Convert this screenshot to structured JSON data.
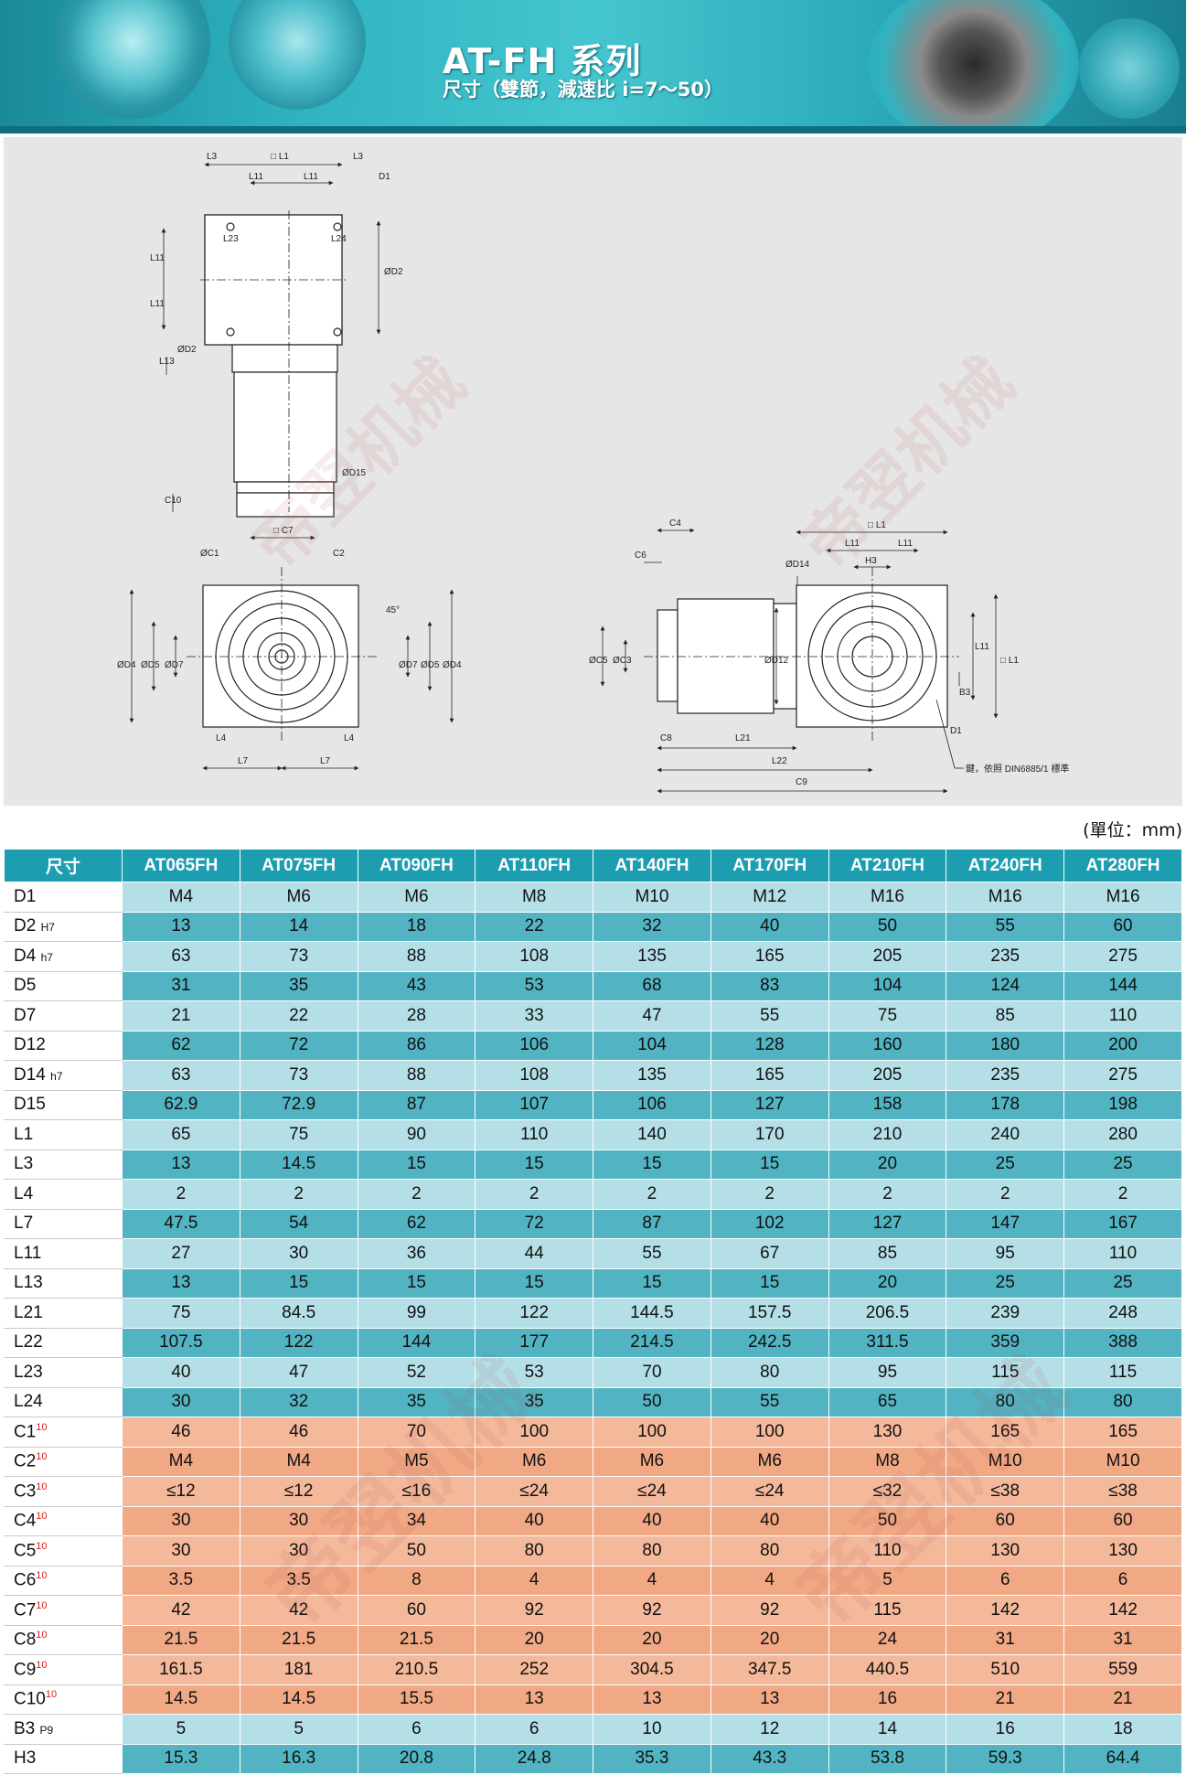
{
  "banner": {
    "title": "AT-FH 系列",
    "subtitle": "尺寸（雙節，減速比 i=7～50）"
  },
  "watermark": "帝翌机械",
  "drawing": {
    "labels": {
      "L3": "L3",
      "L1": "□ L1",
      "L11": "L11",
      "D1": "D1",
      "L23": "L23",
      "L24": "L24",
      "D2": "ØD2",
      "L13": "L13",
      "D15": "ØD15",
      "C10": "C10",
      "C7": "□ C7",
      "C1": "ØC1",
      "C2": "C2",
      "angle": "45°",
      "D4": "ØD4",
      "D5": "ØD5",
      "D7": "ØD7",
      "L4": "L4",
      "L7": "L7",
      "C4": "C4",
      "C6": "C6",
      "D14": "ØD14",
      "H3": "H3",
      "C5": "ØC5",
      "C3": "ØC3",
      "D12": "ØD12",
      "B3": "B3",
      "C8": "C8",
      "L21": "L21",
      "L22": "L22",
      "C9": "C9",
      "key_note": "鍵，依照 DIN6885/1 標準"
    }
  },
  "unit": "(單位：mm)",
  "table": {
    "header_label": "尺寸",
    "models": [
      "AT065FH",
      "AT075FH",
      "AT090FH",
      "AT110FH",
      "AT140FH",
      "AT170FH",
      "AT210FH",
      "AT240FH",
      "AT280FH"
    ],
    "rows": [
      {
        "name": "D1",
        "sub": "",
        "sup": "",
        "values": [
          "M4",
          "M6",
          "M6",
          "M8",
          "M10",
          "M12",
          "M16",
          "M16",
          "M16"
        ]
      },
      {
        "name": "D2",
        "sub": "H7",
        "sup": "",
        "values": [
          "13",
          "14",
          "18",
          "22",
          "32",
          "40",
          "50",
          "55",
          "60"
        ]
      },
      {
        "name": "D4",
        "sub": "h7",
        "sup": "",
        "values": [
          "63",
          "73",
          "88",
          "108",
          "135",
          "165",
          "205",
          "235",
          "275"
        ]
      },
      {
        "name": "D5",
        "sub": "",
        "sup": "",
        "values": [
          "31",
          "35",
          "43",
          "53",
          "68",
          "83",
          "104",
          "124",
          "144"
        ]
      },
      {
        "name": "D7",
        "sub": "",
        "sup": "",
        "values": [
          "21",
          "22",
          "28",
          "33",
          "47",
          "55",
          "75",
          "85",
          "110"
        ]
      },
      {
        "name": "D12",
        "sub": "",
        "sup": "",
        "values": [
          "62",
          "72",
          "86",
          "106",
          "104",
          "128",
          "160",
          "180",
          "200"
        ]
      },
      {
        "name": "D14",
        "sub": "h7",
        "sup": "",
        "values": [
          "63",
          "73",
          "88",
          "108",
          "135",
          "165",
          "205",
          "235",
          "275"
        ]
      },
      {
        "name": "D15",
        "sub": "",
        "sup": "",
        "values": [
          "62.9",
          "72.9",
          "87",
          "107",
          "106",
          "127",
          "158",
          "178",
          "198"
        ]
      },
      {
        "name": "L1",
        "sub": "",
        "sup": "",
        "values": [
          "65",
          "75",
          "90",
          "110",
          "140",
          "170",
          "210",
          "240",
          "280"
        ]
      },
      {
        "name": "L3",
        "sub": "",
        "sup": "",
        "values": [
          "13",
          "14.5",
          "15",
          "15",
          "15",
          "15",
          "20",
          "25",
          "25"
        ]
      },
      {
        "name": "L4",
        "sub": "",
        "sup": "",
        "values": [
          "2",
          "2",
          "2",
          "2",
          "2",
          "2",
          "2",
          "2",
          "2"
        ]
      },
      {
        "name": "L7",
        "sub": "",
        "sup": "",
        "values": [
          "47.5",
          "54",
          "62",
          "72",
          "87",
          "102",
          "127",
          "147",
          "167"
        ]
      },
      {
        "name": "L11",
        "sub": "",
        "sup": "",
        "values": [
          "27",
          "30",
          "36",
          "44",
          "55",
          "67",
          "85",
          "95",
          "110"
        ]
      },
      {
        "name": "L13",
        "sub": "",
        "sup": "",
        "values": [
          "13",
          "15",
          "15",
          "15",
          "15",
          "15",
          "20",
          "25",
          "25"
        ]
      },
      {
        "name": "L21",
        "sub": "",
        "sup": "",
        "values": [
          "75",
          "84.5",
          "99",
          "122",
          "144.5",
          "157.5",
          "206.5",
          "239",
          "248"
        ]
      },
      {
        "name": "L22",
        "sub": "",
        "sup": "",
        "values": [
          "107.5",
          "122",
          "144",
          "177",
          "214.5",
          "242.5",
          "311.5",
          "359",
          "388"
        ]
      },
      {
        "name": "L23",
        "sub": "",
        "sup": "",
        "values": [
          "40",
          "47",
          "52",
          "53",
          "70",
          "80",
          "95",
          "115",
          "115"
        ]
      },
      {
        "name": "L24",
        "sub": "",
        "sup": "",
        "values": [
          "30",
          "32",
          "35",
          "35",
          "50",
          "55",
          "65",
          "80",
          "80"
        ]
      },
      {
        "name": "C1",
        "sub": "",
        "sup": "10",
        "values": [
          "46",
          "46",
          "70",
          "100",
          "100",
          "100",
          "130",
          "165",
          "165"
        ]
      },
      {
        "name": "C2",
        "sub": "",
        "sup": "10",
        "values": [
          "M4",
          "M4",
          "M5",
          "M6",
          "M6",
          "M6",
          "M8",
          "M10",
          "M10"
        ]
      },
      {
        "name": "C3",
        "sub": "",
        "sup": "10",
        "values": [
          "≤12",
          "≤12",
          "≤16",
          "≤24",
          "≤24",
          "≤24",
          "≤32",
          "≤38",
          "≤38"
        ]
      },
      {
        "name": "C4",
        "sub": "",
        "sup": "10",
        "values": [
          "30",
          "30",
          "34",
          "40",
          "40",
          "40",
          "50",
          "60",
          "60"
        ]
      },
      {
        "name": "C5",
        "sub": "",
        "sup": "10",
        "values": [
          "30",
          "30",
          "50",
          "80",
          "80",
          "80",
          "110",
          "130",
          "130"
        ]
      },
      {
        "name": "C6",
        "sub": "",
        "sup": "10",
        "values": [
          "3.5",
          "3.5",
          "8",
          "4",
          "4",
          "4",
          "5",
          "6",
          "6"
        ]
      },
      {
        "name": "C7",
        "sub": "",
        "sup": "10",
        "values": [
          "42",
          "42",
          "60",
          "92",
          "92",
          "92",
          "115",
          "142",
          "142"
        ]
      },
      {
        "name": "C8",
        "sub": "",
        "sup": "10",
        "values": [
          "21.5",
          "21.5",
          "21.5",
          "20",
          "20",
          "20",
          "24",
          "31",
          "31"
        ]
      },
      {
        "name": "C9",
        "sub": "",
        "sup": "10",
        "values": [
          "161.5",
          "181",
          "210.5",
          "252",
          "304.5",
          "347.5",
          "440.5",
          "510",
          "559"
        ]
      },
      {
        "name": "C10",
        "sub": "",
        "sup": "10",
        "values": [
          "14.5",
          "14.5",
          "15.5",
          "13",
          "13",
          "13",
          "16",
          "21",
          "21"
        ]
      },
      {
        "name": "B3",
        "sub": "P9",
        "sup": "",
        "values": [
          "5",
          "5",
          "6",
          "6",
          "10",
          "12",
          "14",
          "16",
          "18"
        ]
      },
      {
        "name": "H3",
        "sub": "",
        "sup": "",
        "values": [
          "15.3",
          "16.3",
          "20.8",
          "24.8",
          "35.3",
          "43.3",
          "53.8",
          "59.3",
          "64.4"
        ]
      }
    ]
  }
}
